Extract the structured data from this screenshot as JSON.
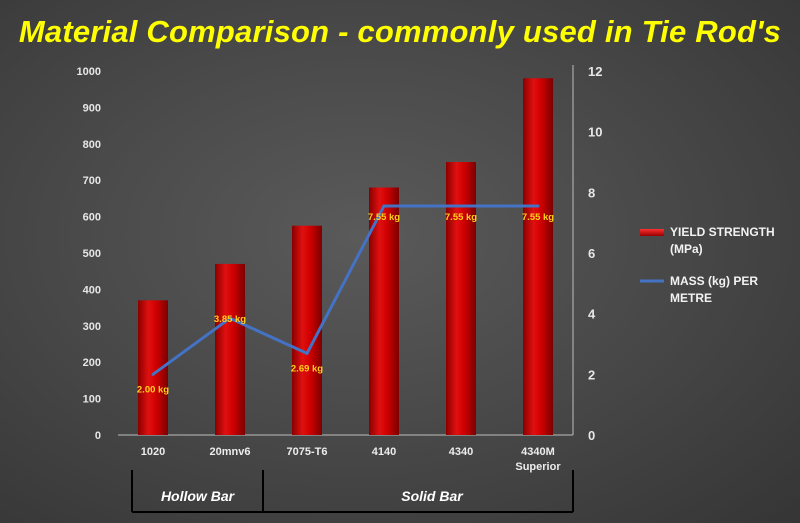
{
  "title": "Material Comparison - commonly used in Tie Rod's",
  "chart_data": {
    "type": "bar",
    "categories": [
      "1020",
      "20mnv6",
      "7075-T6",
      "4140",
      "4340",
      "4340M Superior"
    ],
    "series": [
      {
        "name": "YIELD STRENGTH (MPa)",
        "type": "bar",
        "axis": "left",
        "color": "#cc0000",
        "values": [
          370,
          470,
          575,
          680,
          750,
          980
        ]
      },
      {
        "name": "MASS (kg) PER METRE",
        "type": "line",
        "axis": "right",
        "color": "#4472c4",
        "values": [
          2.0,
          3.85,
          2.69,
          7.55,
          7.55,
          7.55
        ],
        "data_labels": [
          "2.00 kg",
          "3.85 kg",
          "2.69 kg",
          "7.55 kg",
          "7.55 kg",
          "7.55 kg"
        ]
      }
    ],
    "left_axis": {
      "ylim": [
        0,
        1000
      ],
      "ticks": [
        "0",
        "100",
        "200",
        "300",
        "400",
        "500",
        "600",
        "700",
        "800",
        "900",
        "1000"
      ]
    },
    "right_axis": {
      "ylim": [
        0,
        12
      ],
      "ticks": [
        "0",
        "2",
        "4",
        "6",
        "8",
        "10",
        "12"
      ]
    },
    "groups": [
      {
        "label": "Hollow Bar",
        "from": 0,
        "to": 1
      },
      {
        "label": "Solid Bar",
        "from": 2,
        "to": 5
      }
    ],
    "legend": [
      "YIELD STRENGTH (MPa)",
      "MASS (kg) PER METRE"
    ],
    "legend_position": "right",
    "grid": false
  }
}
